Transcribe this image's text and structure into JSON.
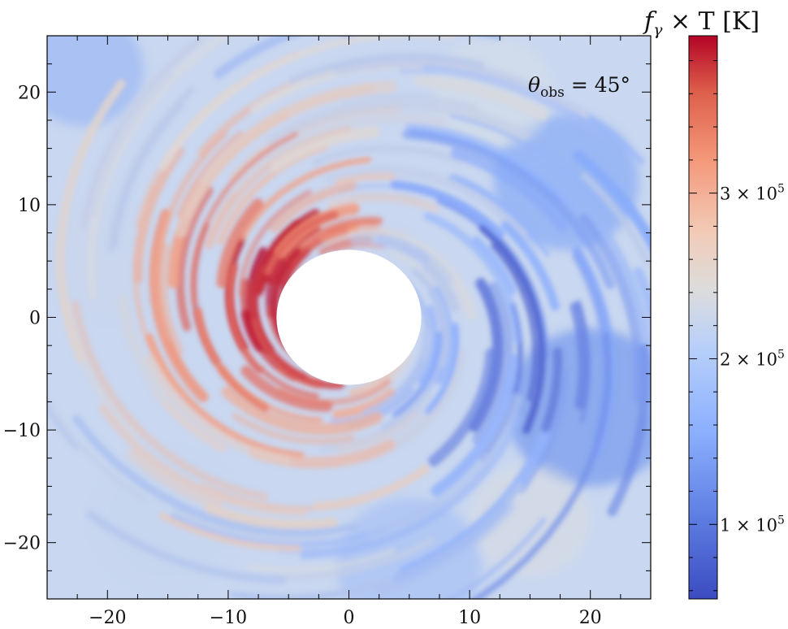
{
  "chart_data": {
    "type": "heatmap",
    "title": "",
    "xlabel": "",
    "ylabel": "",
    "xlim": [
      -25,
      25
    ],
    "ylim": [
      -25,
      25
    ],
    "x_ticks": [
      -20,
      -10,
      0,
      10,
      20
    ],
    "y_ticks": [
      20,
      10,
      0,
      -10,
      -20
    ],
    "x_tick_labels": [
      "−20",
      "−10",
      "0",
      "10",
      "20"
    ],
    "y_tick_labels": [
      "20",
      "10",
      "0",
      "−10",
      "−20"
    ],
    "annotation": {
      "symbol": "θ",
      "subscript": "obs",
      "relation": " = 45°"
    },
    "excised_inner_radius": 6,
    "colormap": "coolwarm",
    "colorbar": {
      "title_main": "f",
      "title_sub": "γ",
      "title_rest": " × T [K]",
      "scale": "linear",
      "range": [
        55000,
        395000
      ],
      "ticks": [
        {
          "value": 100000,
          "label": "1 × 10",
          "exp": "5"
        },
        {
          "value": 200000,
          "label": "2 × 10",
          "exp": "5"
        },
        {
          "value": 300000,
          "label": "3 × 10",
          "exp": "5"
        }
      ]
    },
    "colors": {
      "low": "#3b4cc0",
      "mid": "#dddddd",
      "high": "#b40426",
      "background_field": "#c9d7f0"
    },
    "features": {
      "description_free": true,
      "hot_spiral_arm_side": "left",
      "peak_region": {
        "x": -7,
        "y": 4
      },
      "cool_region": {
        "x": 18,
        "y": -8
      }
    }
  }
}
